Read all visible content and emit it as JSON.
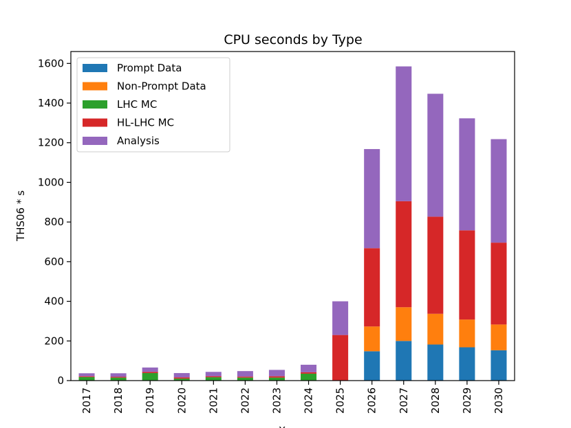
{
  "chart_data": {
    "type": "bar",
    "stacked": true,
    "title": "CPU seconds by Type",
    "xlabel": "X",
    "ylabel": "THS06 * s",
    "ylim": [
      0,
      1660
    ],
    "yticks": [
      0,
      200,
      400,
      600,
      800,
      1000,
      1200,
      1400,
      1600
    ],
    "legend_position": "top-left",
    "categories": [
      "2017",
      "2018",
      "2019",
      "2020",
      "2021",
      "2022",
      "2023",
      "2024",
      "2025",
      "2026",
      "2027",
      "2028",
      "2029",
      "2030"
    ],
    "series": [
      {
        "name": "Prompt Data",
        "color": "#1f77b4",
        "values": [
          0,
          0,
          0,
          0,
          0,
          0,
          0,
          0,
          0,
          148,
          200,
          182,
          168,
          153
        ]
      },
      {
        "name": "Non-Prompt Data",
        "color": "#ff7f0e",
        "values": [
          0,
          0,
          0,
          0,
          0,
          0,
          0,
          0,
          0,
          125,
          170,
          155,
          140,
          130
        ]
      },
      {
        "name": "LHC MC",
        "color": "#2ca02c",
        "values": [
          18,
          15,
          38,
          10,
          17,
          15,
          15,
          35,
          0,
          0,
          0,
          0,
          0,
          0
        ]
      },
      {
        "name": "HL-LHC MC",
        "color": "#d62728",
        "values": [
          4,
          4,
          6,
          6,
          5,
          5,
          7,
          7,
          230,
          395,
          535,
          490,
          450,
          413
        ]
      },
      {
        "name": "Analysis",
        "color": "#9467bd",
        "values": [
          15,
          18,
          22,
          22,
          22,
          28,
          32,
          38,
          170,
          500,
          680,
          620,
          565,
          522
        ]
      }
    ]
  }
}
